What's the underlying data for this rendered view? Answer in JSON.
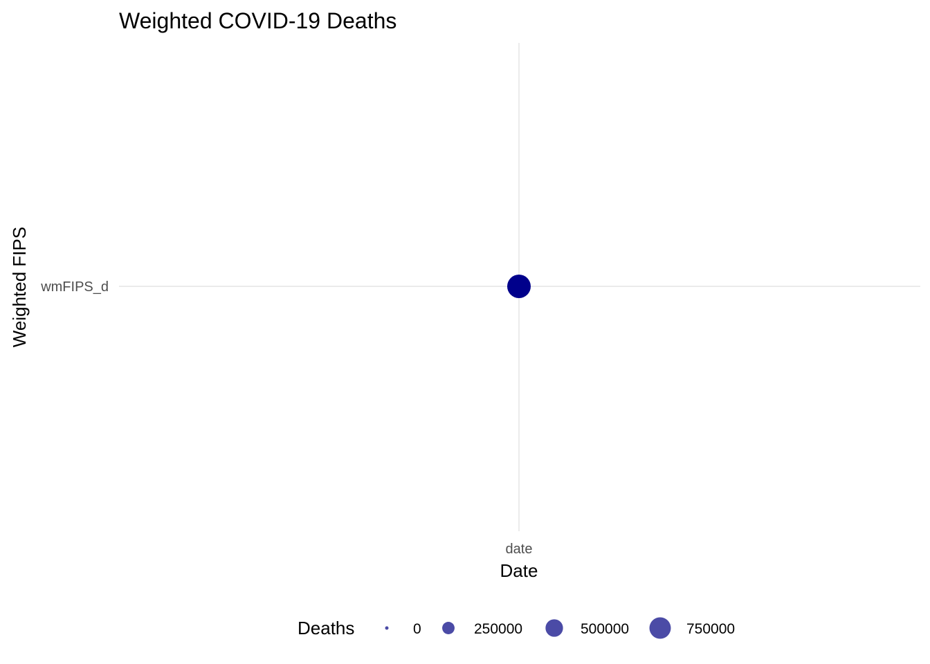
{
  "chart_data": {
    "type": "scatter",
    "title": "Weighted COVID-19 Deaths",
    "xlabel": "Date",
    "ylabel": "Weighted FIPS",
    "x_categories": [
      "date"
    ],
    "y_categories": [
      "wmFIPS_d"
    ],
    "points": [
      {
        "x": "date",
        "y": "wmFIPS_d",
        "size_value": 850000
      }
    ],
    "point_color": "#00008B",
    "grid": true,
    "legend": {
      "title": "Deaths",
      "position": "bottom",
      "color": "#4B4BA6",
      "entries": [
        {
          "label": "0",
          "value": 0
        },
        {
          "label": "250000",
          "value": 250000
        },
        {
          "label": "500000",
          "value": 500000
        },
        {
          "label": "750000",
          "value": 750000
        }
      ]
    }
  }
}
